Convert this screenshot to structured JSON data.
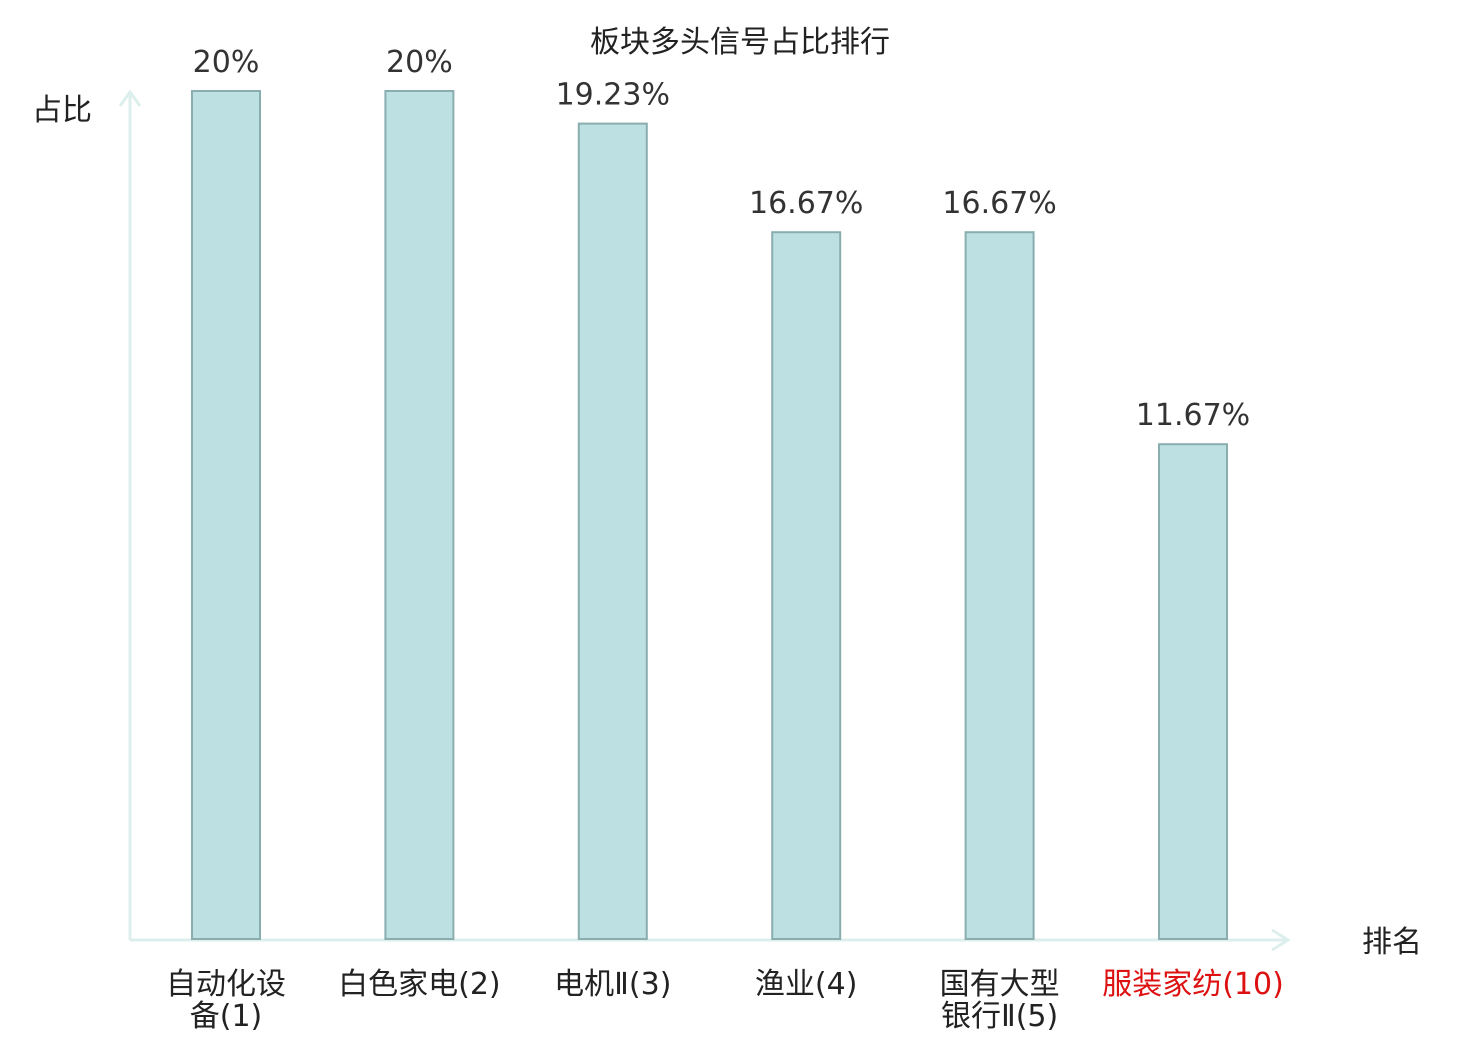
{
  "chart_data": {
    "type": "bar",
    "title": "板块多头信号占比排行",
    "ylabel": "占比",
    "xlabel": "排名",
    "categories": [
      [
        "自动化设",
        "备(1)"
      ],
      [
        "白色家电(2)"
      ],
      [
        "电机Ⅱ(3)"
      ],
      [
        "渔业(4)"
      ],
      [
        "国有大型",
        "银行Ⅱ(5)"
      ],
      [
        "服装家纺(10)"
      ]
    ],
    "values": [
      20,
      20,
      19.23,
      16.67,
      16.67,
      11.67
    ],
    "value_labels": [
      "20%",
      "20%",
      "19.23%",
      "16.67%",
      "16.67%",
      "11.67%"
    ],
    "highlight_index": 5,
    "ylim": [
      0,
      20
    ],
    "grid": false,
    "legend": "none"
  },
  "colors": {
    "bar_fill": "#bde0e3",
    "bar_stroke": "#8aaeb0",
    "axis": "#dcefed",
    "label_text": "#333333",
    "highlight_text": "#dd1111"
  }
}
